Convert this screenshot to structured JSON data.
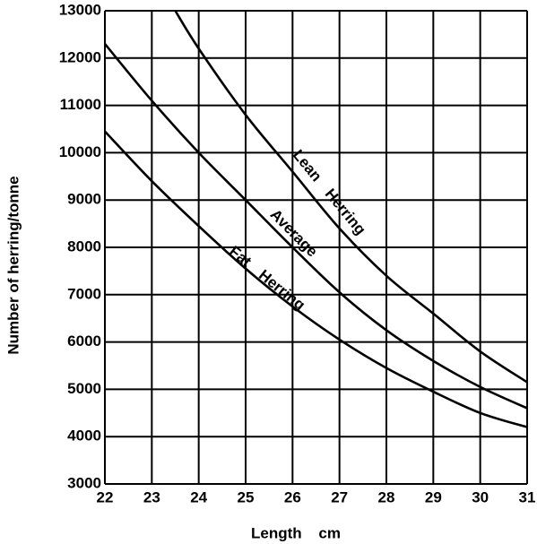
{
  "chart_data": {
    "type": "line",
    "xlabel": "Length cm",
    "ylabel": "Number of herring/tonne",
    "xlim": [
      22,
      31
    ],
    "ylim": [
      3000,
      13000
    ],
    "xticks": [
      22,
      23,
      24,
      25,
      26,
      27,
      28,
      29,
      30,
      31
    ],
    "yticks": [
      3000,
      4000,
      5000,
      6000,
      7000,
      8000,
      9000,
      10000,
      11000,
      12000,
      13000
    ],
    "grid": true,
    "series": [
      {
        "name": "Lean Herring",
        "color": "#000000",
        "x": [
          23.5,
          24,
          25,
          26,
          27,
          28,
          29,
          30,
          31
        ],
        "values": [
          13000,
          12200,
          10800,
          9600,
          8400,
          7400,
          6600,
          5800,
          5150
        ]
      },
      {
        "name": "Average",
        "color": "#000000",
        "x": [
          22,
          23,
          24,
          25,
          26,
          27,
          28,
          29,
          30,
          31
        ],
        "values": [
          12300,
          11100,
          10000,
          9000,
          8000,
          7050,
          6250,
          5600,
          5050,
          4600
        ]
      },
      {
        "name": "Fat Herring",
        "color": "#000000",
        "x": [
          22,
          23,
          24,
          25,
          26,
          27,
          28,
          29,
          30,
          31
        ],
        "values": [
          10450,
          9400,
          8450,
          7550,
          6750,
          6050,
          5450,
          4950,
          4500,
          4200
        ]
      }
    ]
  }
}
